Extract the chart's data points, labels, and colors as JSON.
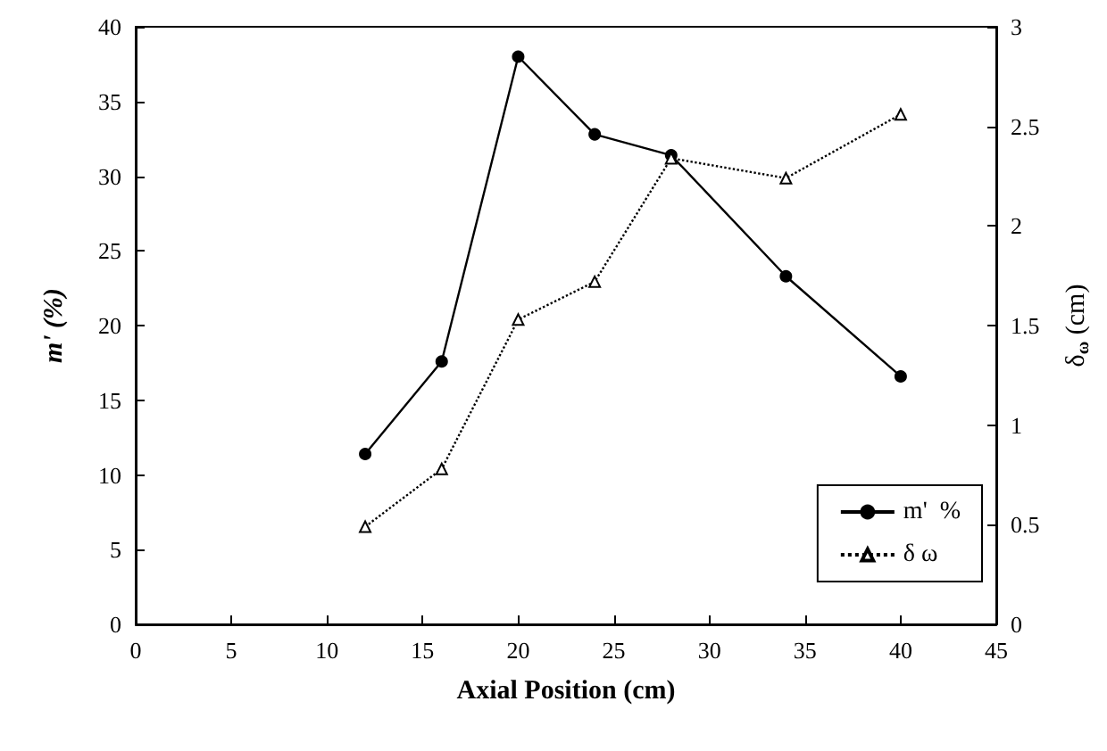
{
  "chart_data": {
    "type": "line",
    "xlabel": "Axial Position (cm)",
    "ylabel": "m' (%)",
    "y2label": "δ$_{ω}$ (cm)",
    "x": [
      12,
      16,
      20,
      24,
      28,
      34,
      40
    ],
    "series": [
      {
        "name": "m'  %",
        "color": "#000000",
        "values": [
          11.4,
          17.6,
          38.0,
          32.8,
          31.4,
          23.3,
          16.6
        ],
        "marker": "circle",
        "line_style": "solid"
      },
      {
        "name": "δ ω",
        "color": "#000000",
        "values": [
          0.49,
          0.78,
          1.53,
          1.72,
          2.34,
          2.24,
          2.56
        ],
        "axis": "y2",
        "marker": "triangle",
        "line_style": "dotted"
      }
    ],
    "xlim": [
      0,
      45
    ],
    "xticks": [
      0,
      5,
      10,
      15,
      20,
      25,
      30,
      35,
      40,
      45
    ],
    "ylim": [
      0,
      40
    ],
    "yticks": [
      0,
      5,
      10,
      15,
      20,
      25,
      30,
      35,
      40
    ],
    "y2lim": [
      0,
      3
    ],
    "y2ticks": [
      0,
      0.5,
      1,
      1.5,
      2,
      2.5,
      3
    ],
    "grid": false,
    "legend": "right"
  }
}
